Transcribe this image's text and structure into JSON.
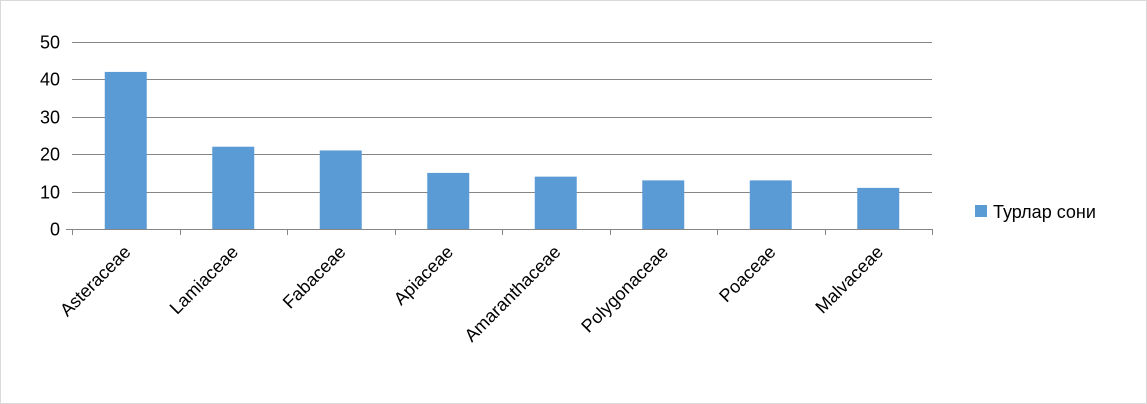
{
  "chart_data": {
    "type": "bar",
    "categories": [
      "Asteraceae",
      "Lamiaceae",
      "Fabaceae",
      "Apiaceae",
      "Amaranthaceae",
      "Polygonaceae",
      "Poaceae",
      "Malvaceae"
    ],
    "series": [
      {
        "name": "Турлар сони",
        "values": [
          42,
          22,
          21,
          15,
          14,
          13,
          13,
          11
        ],
        "color": "#5b9bd5"
      }
    ],
    "title": "",
    "xlabel": "",
    "ylabel": "",
    "ylim": [
      0,
      50
    ],
    "yticks": [
      0,
      10,
      20,
      30,
      40,
      50
    ],
    "grid": true,
    "legend_position": "right",
    "gridline_color": "#868686",
    "axis_color": "#868686"
  }
}
